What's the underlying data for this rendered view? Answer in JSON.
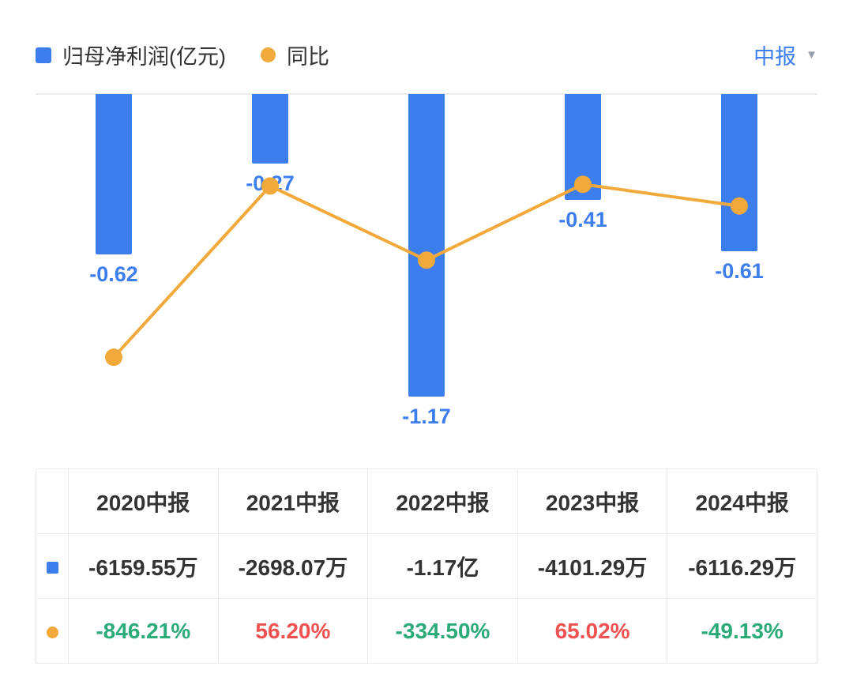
{
  "legend": {
    "series1": "归母净利润(亿元)",
    "series2": "同比",
    "period_selector": "中报"
  },
  "colors": {
    "bar": "#3d7eee",
    "line": "#f2a93b",
    "positive": "#f05151",
    "negative": "#2bab77",
    "label_blue": "#3d7eee",
    "text_dark": "#333333",
    "grid": "#ececec"
  },
  "chart_data": {
    "type": "bar+line",
    "categories": [
      "2020中报",
      "2021中报",
      "2022中报",
      "2023中报",
      "2024中报"
    ],
    "series": [
      {
        "name": "归母净利润(亿元)",
        "type": "bar",
        "axis": "y1",
        "values": [
          -0.62,
          -0.27,
          -1.17,
          -0.41,
          -0.61
        ],
        "labels": [
          "-0.62",
          "-0.27",
          "-1.17",
          "-0.41",
          "-0.61"
        ]
      },
      {
        "name": "同比",
        "type": "line",
        "axis": "y2",
        "values": [
          -846.21,
          56.2,
          -334.5,
          65.02,
          -49.13
        ]
      }
    ],
    "y1lim": [
      -1.4,
      0
    ],
    "y2lim": [
      -1370,
      545
    ],
    "grid": "zero-line-only",
    "legend_position": "top-left"
  },
  "table": {
    "headers": [
      "2020中报",
      "2021中报",
      "2022中报",
      "2023中报",
      "2024中报"
    ],
    "rows": [
      {
        "icon": "bar-series-icon",
        "values": [
          "-6159.55万",
          "-2698.07万",
          "-1.17亿",
          "-4101.29万",
          "-6116.29万"
        ],
        "value_colors": [
          "dark",
          "dark",
          "dark",
          "dark",
          "dark"
        ]
      },
      {
        "icon": "line-series-icon",
        "values": [
          "-846.21%",
          "56.20%",
          "-334.50%",
          "65.02%",
          "-49.13%"
        ],
        "value_colors": [
          "negative",
          "positive",
          "negative",
          "positive",
          "negative"
        ]
      }
    ]
  }
}
